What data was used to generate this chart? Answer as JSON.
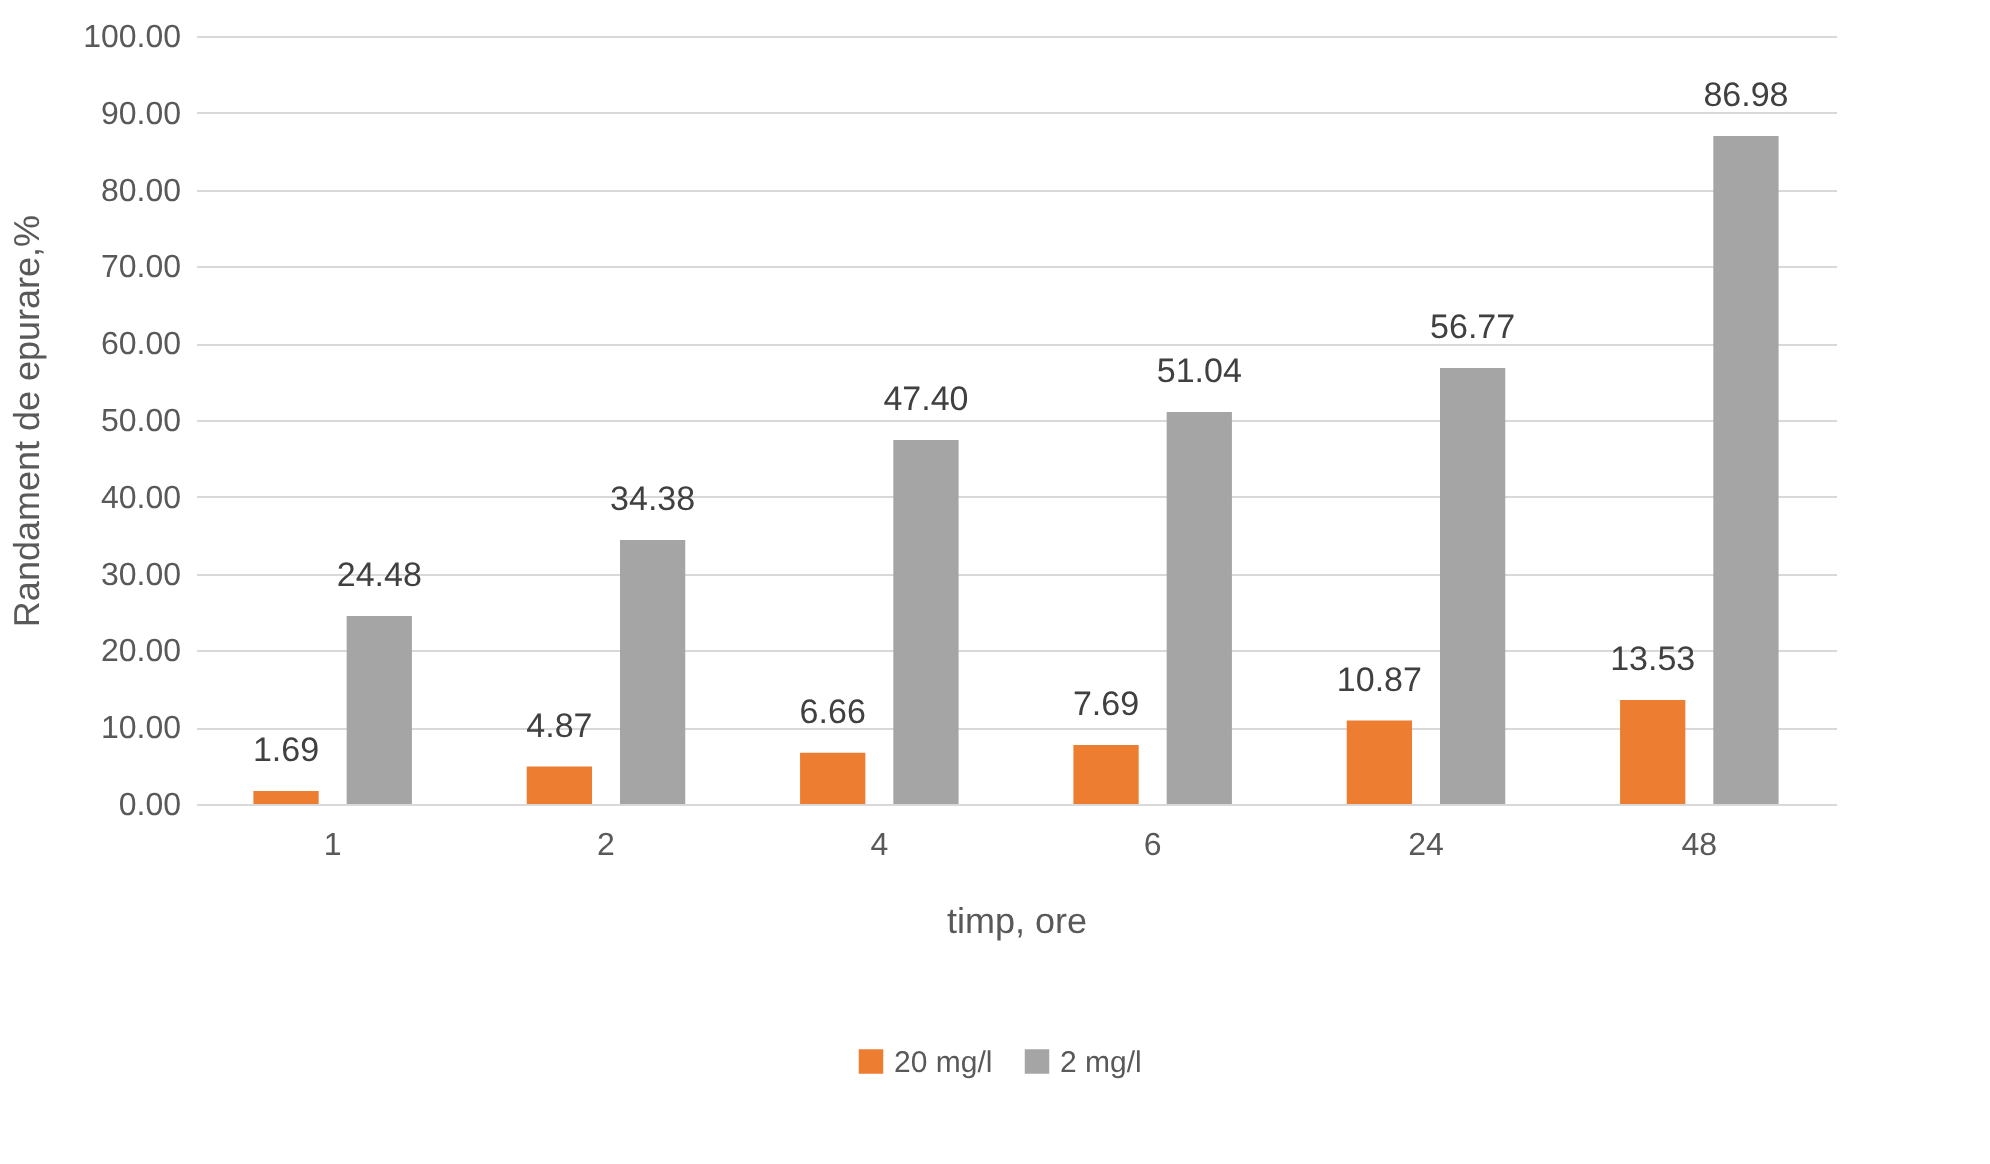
{
  "chart_data": {
    "type": "bar",
    "xlabel": "timp, ore",
    "ylabel": "Randament de epurare,%",
    "categories": [
      "1",
      "2",
      "4",
      "6",
      "24",
      "48"
    ],
    "series": [
      {
        "name": "20 mg/l",
        "color": "#ed7d31",
        "values": [
          1.69,
          4.87,
          6.66,
          7.69,
          10.87,
          13.53
        ],
        "value_labels": [
          "1.69",
          "4.87",
          "6.66",
          "7.69",
          "10.87",
          "13.53"
        ]
      },
      {
        "name": "2 mg/l",
        "color": "#a5a5a5",
        "values": [
          24.48,
          34.38,
          47.4,
          51.04,
          56.77,
          86.98
        ],
        "value_labels": [
          "24.48",
          "34.38",
          "47.40",
          "51.04",
          "56.77",
          "86.98"
        ]
      }
    ],
    "ylim": [
      0,
      100
    ],
    "yticks": [
      {
        "value": 0,
        "label": "0.00"
      },
      {
        "value": 10,
        "label": "10.00"
      },
      {
        "value": 20,
        "label": "20.00"
      },
      {
        "value": 30,
        "label": "30.00"
      },
      {
        "value": 40,
        "label": "40.00"
      },
      {
        "value": 50,
        "label": "50.00"
      },
      {
        "value": 60,
        "label": "60.00"
      },
      {
        "value": 70,
        "label": "70.00"
      },
      {
        "value": 80,
        "label": "80.00"
      },
      {
        "value": 90,
        "label": "90.00"
      },
      {
        "value": 100,
        "label": "100.00"
      }
    ],
    "grid": "y",
    "legend": "bottom"
  }
}
